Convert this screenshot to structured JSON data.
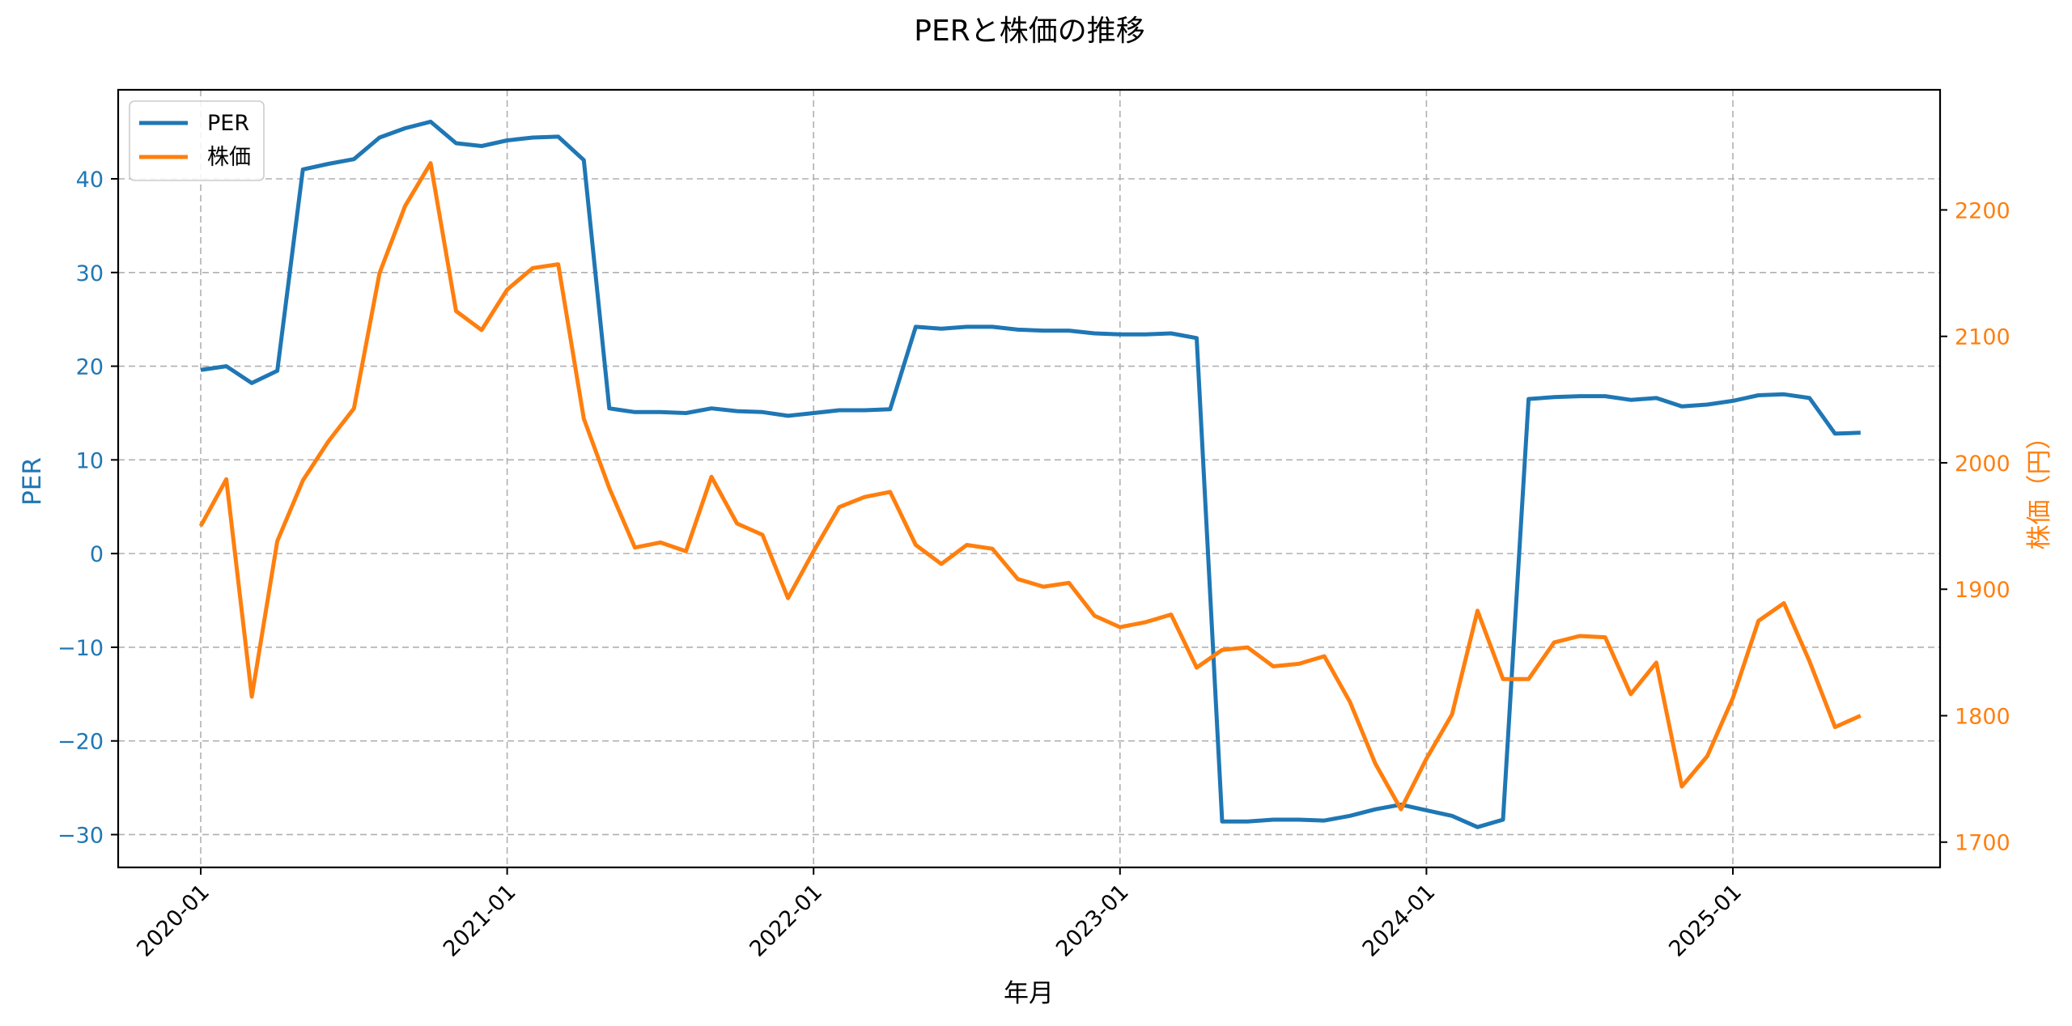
{
  "chart_data": {
    "type": "line",
    "title": "PERと株価の推移",
    "xlabel": "年月",
    "ylabel_left": "PER",
    "ylabel_right": "株価（円）",
    "ylim_left": [
      -33.5,
      49.5
    ],
    "ylim_right": [
      1680,
      2295
    ],
    "x_start": "2020-01",
    "x_ticks": [
      "2020-01",
      "2021-01",
      "2022-01",
      "2023-01",
      "2024-01",
      "2025-01"
    ],
    "y_ticks_left": [
      -30,
      -20,
      -10,
      0,
      10,
      20,
      30,
      40
    ],
    "y_ticks_right": [
      1700,
      1800,
      1900,
      2000,
      2100,
      2200
    ],
    "y_tick_labels_left": [
      "−30",
      "−20",
      "−10",
      "0",
      "10",
      "20",
      "30",
      "40"
    ],
    "grid": true,
    "legend_position": "top-left",
    "colors": {
      "per": "#1f77b4",
      "price": "#ff7f0e",
      "axes": "#000000",
      "grid": "#b0b0b0"
    },
    "series": [
      {
        "name": "PER",
        "axis": "left",
        "color": "#1f77b4",
        "values": [
          19.6,
          20.0,
          18.2,
          19.5,
          41.0,
          41.6,
          42.1,
          44.4,
          45.4,
          46.1,
          43.8,
          43.5,
          44.1,
          44.4,
          44.5,
          42.0,
          15.5,
          15.1,
          15.1,
          15.0,
          15.5,
          15.2,
          15.1,
          14.7,
          15.0,
          15.3,
          15.3,
          15.4,
          24.2,
          24.0,
          24.2,
          24.2,
          23.9,
          23.8,
          23.8,
          23.5,
          23.4,
          23.4,
          23.5,
          23.0,
          -28.6,
          -28.6,
          -28.4,
          -28.4,
          -28.5,
          -28.0,
          -27.3,
          -26.8,
          -27.4,
          -28.0,
          -29.2,
          -28.4,
          16.5,
          16.7,
          16.8,
          16.8,
          16.4,
          16.6,
          15.7,
          15.9,
          16.3,
          16.9,
          17.0,
          16.6,
          12.8,
          12.9
        ]
      },
      {
        "name": "株価",
        "axis": "right",
        "color": "#ff7f0e",
        "values": [
          1950,
          1987,
          1815,
          1938,
          1986,
          2017,
          2043,
          2150,
          2203,
          2237,
          2120,
          2105,
          2137,
          2154,
          2157,
          2035,
          1980,
          1933,
          1937,
          1930,
          1989,
          1952,
          1943,
          1893,
          1930,
          1965,
          1973,
          1977,
          1935,
          1920,
          1935,
          1932,
          1908,
          1902,
          1905,
          1879,
          1870,
          1874,
          1880,
          1838,
          1852,
          1854,
          1839,
          1841,
          1847,
          1811,
          1762,
          1726,
          1766,
          1801,
          1883,
          1829,
          1829,
          1858,
          1863,
          1862,
          1817,
          1842,
          1744,
          1768,
          1814,
          1875,
          1889,
          1843,
          1791,
          1800
        ]
      }
    ]
  }
}
